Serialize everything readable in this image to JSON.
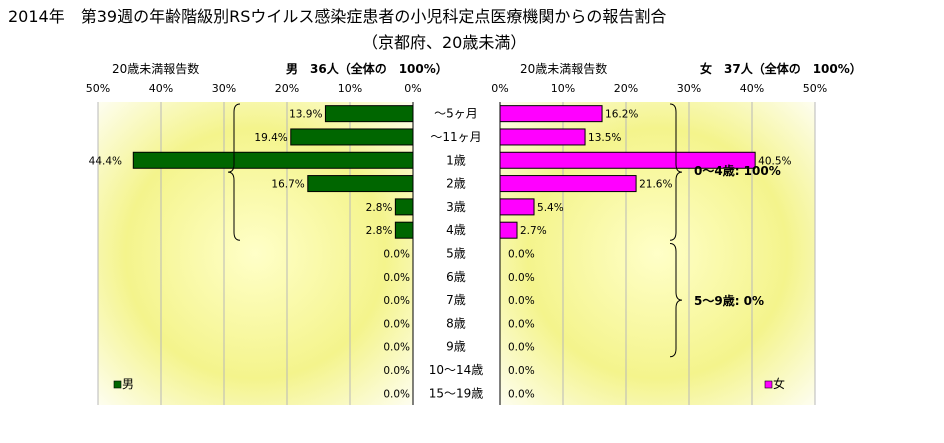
{
  "title": "2014年　第39週の年齢階級別RSウイルス感染症患者の小児科定点医療機関からの報告割合",
  "subtitle": "（京都府、20歳未満）",
  "chart_data": [
    {
      "type": "bar",
      "orientation": "horizontal",
      "direction": "right-to-left",
      "axis_title": "20歳未満報告数",
      "header": "男　36人（全体の　100%）",
      "xlim": [
        0,
        50
      ],
      "xticks": [
        "50%",
        "40%",
        "30%",
        "20%",
        "10%",
        "0%"
      ],
      "categories": [
        "～5ヶ月",
        "～11ヶ月",
        "1歳",
        "2歳",
        "3歳",
        "4歳",
        "5歳",
        "6歳",
        "7歳",
        "8歳",
        "9歳",
        "10～14歳",
        "15～19歳"
      ],
      "series": [
        {
          "name": "男",
          "color": "#006600",
          "values": [
            13.9,
            19.4,
            44.4,
            16.7,
            2.8,
            2.8,
            0,
            0,
            0,
            0,
            0,
            0,
            0
          ],
          "labels": [
            "13.9%",
            "19.4%",
            "44.4%",
            "16.7%",
            "2.8%",
            "2.8%",
            "0.0%",
            "0.0%",
            "0.0%",
            "0.0%",
            "0.0%",
            "0.0%",
            "0.0%"
          ]
        }
      ],
      "background": "yellow radial gradient",
      "grid": true,
      "legend": "bottom-left"
    },
    {
      "type": "bar",
      "orientation": "horizontal",
      "direction": "left-to-right",
      "axis_title": "20歳未満報告数",
      "header": "女　37人（全体の　100%）",
      "xlim": [
        0,
        50
      ],
      "xticks": [
        "0%",
        "10%",
        "20%",
        "30%",
        "40%",
        "50%"
      ],
      "categories": [
        "～5ヶ月",
        "～11ヶ月",
        "1歳",
        "2歳",
        "3歳",
        "4歳",
        "5歳",
        "6歳",
        "7歳",
        "8歳",
        "9歳",
        "10～14歳",
        "15～19歳"
      ],
      "series": [
        {
          "name": "女",
          "color": "#ff00ff",
          "values": [
            16.2,
            13.5,
            40.5,
            21.6,
            5.4,
            2.7,
            0,
            0,
            0,
            0,
            0,
            0,
            0
          ],
          "labels": [
            "16.2%",
            "13.5%",
            "40.5%",
            "21.6%",
            "5.4%",
            "2.7%",
            "0.0%",
            "0.0%",
            "0.0%",
            "0.0%",
            "0.0%",
            "0.0%",
            "0.0%"
          ]
        }
      ],
      "annotations": [
        "0～4歳: 100%",
        "5～9歳: 0%"
      ],
      "background": "yellow radial gradient",
      "grid": true,
      "legend": "bottom-right"
    }
  ]
}
